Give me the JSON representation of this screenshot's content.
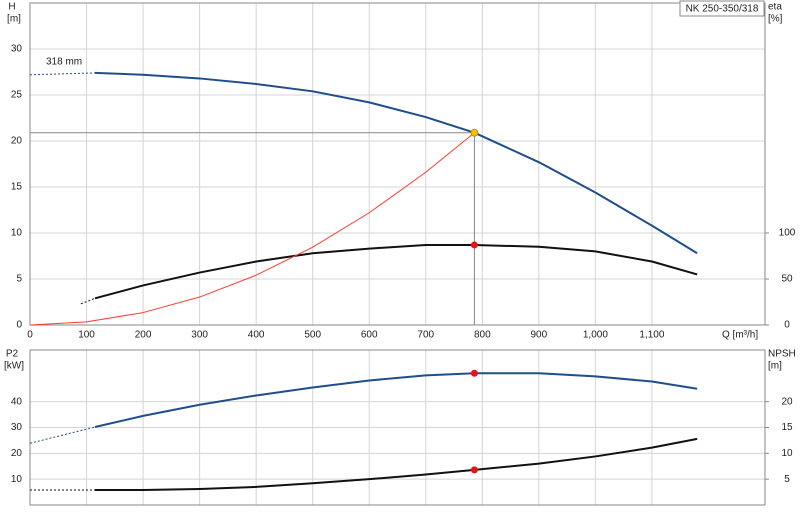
{
  "chart_data": [
    {
      "type": "line",
      "model": "NK 250-350/318",
      "annotation": "318 mm",
      "ylabel": "H",
      "yunit": "[m]",
      "y2label": "eta",
      "y2unit": "[%]",
      "xlabel": "Q [m³/h]",
      "xlim": [
        0,
        1300
      ],
      "xticks": [
        0,
        100,
        200,
        300,
        400,
        500,
        600,
        700,
        800,
        900,
        {
          "value": 1000,
          "label": "1,000"
        },
        {
          "value": 1100,
          "label": "1,100"
        }
      ],
      "ylim": [
        0,
        35
      ],
      "yticks": [
        0,
        5,
        10,
        15,
        20,
        25,
        30
      ],
      "y2lim": [
        0,
        350
      ],
      "y2ticks": [
        0,
        50,
        100
      ],
      "grid": true,
      "xtick_labels": true,
      "series": [
        {
          "color": "#1f4e8c",
          "dash": true,
          "width": 1,
          "x": [
            0,
            115
          ],
          "values": [
            27.2,
            27.4
          ]
        },
        {
          "color": "#1f4e8c",
          "width": 2,
          "x": [
            115,
            200,
            300,
            400,
            500,
            600,
            700,
            786,
            900,
            1000,
            1100,
            1180
          ],
          "values": [
            27.4,
            27.2,
            26.8,
            26.2,
            25.4,
            24.2,
            22.6,
            20.9,
            17.7,
            14.4,
            10.8,
            7.8
          ]
        },
        {
          "color": "#111111",
          "dash": true,
          "width": 1,
          "axis": "y2",
          "x": [
            90,
            115
          ],
          "values": [
            23,
            29
          ]
        },
        {
          "color": "#111111",
          "width": 2,
          "axis": "y2",
          "x": [
            115,
            200,
            300,
            400,
            500,
            600,
            700,
            786,
            900,
            1000,
            1100,
            1180
          ],
          "values": [
            29,
            43,
            57,
            69,
            78,
            83,
            87,
            87,
            85,
            80,
            69,
            55
          ]
        },
        {
          "color": "#ff3b30",
          "width": 1,
          "x": [
            0,
            100,
            200,
            300,
            400,
            500,
            600,
            700,
            786
          ],
          "values": [
            0,
            0.34,
            1.35,
            3.04,
            5.41,
            8.46,
            12.2,
            16.6,
            20.9
          ]
        }
      ],
      "points": [
        {
          "x": 786,
          "y": 20.9,
          "color": "#f5c400",
          "guides": true
        },
        {
          "x": 786,
          "y": 87,
          "color": "#ee1111",
          "axis": "y2"
        }
      ]
    },
    {
      "type": "line",
      "ylabel": "P2",
      "yunit": "[kW]",
      "y2label": "NPSH",
      "y2unit": "[m]",
      "xlim": [
        0,
        1300
      ],
      "xticks": [
        0,
        100,
        200,
        300,
        400,
        500,
        600,
        700,
        800,
        900,
        1000,
        1100
      ],
      "ylim": [
        0,
        60
      ],
      "yticks": [
        10,
        20,
        30,
        40
      ],
      "y2lim": [
        0,
        30
      ],
      "y2ticks": [
        5,
        10,
        15,
        20
      ],
      "grid": true,
      "xtick_labels": false,
      "series": [
        {
          "color": "#1f4e8c",
          "dash": true,
          "width": 1,
          "x": [
            0,
            115
          ],
          "values": [
            23.9,
            30.2
          ]
        },
        {
          "color": "#1f4e8c",
          "width": 2,
          "x": [
            115,
            200,
            300,
            400,
            500,
            600,
            700,
            786,
            900,
            1000,
            1100,
            1180
          ],
          "values": [
            30.2,
            34.5,
            38.8,
            42.4,
            45.5,
            48.2,
            50.2,
            51,
            51,
            49.8,
            47.8,
            45
          ]
        },
        {
          "color": "#111111",
          "dash": true,
          "width": 1,
          "axis": "y2",
          "x": [
            0,
            115
          ],
          "values": [
            2.9,
            2.9
          ]
        },
        {
          "color": "#111111",
          "width": 2,
          "axis": "y2",
          "x": [
            115,
            200,
            300,
            400,
            500,
            600,
            700,
            786,
            900,
            1000,
            1100,
            1180
          ],
          "values": [
            2.9,
            2.9,
            3.1,
            3.5,
            4.2,
            5.0,
            5.9,
            6.8,
            8.0,
            9.4,
            11.1,
            12.8
          ]
        }
      ],
      "points": [
        {
          "x": 786,
          "y": 51,
          "color": "#ee1111"
        },
        {
          "x": 786,
          "y": 6.8,
          "color": "#ee1111",
          "axis": "y2"
        }
      ]
    }
  ]
}
